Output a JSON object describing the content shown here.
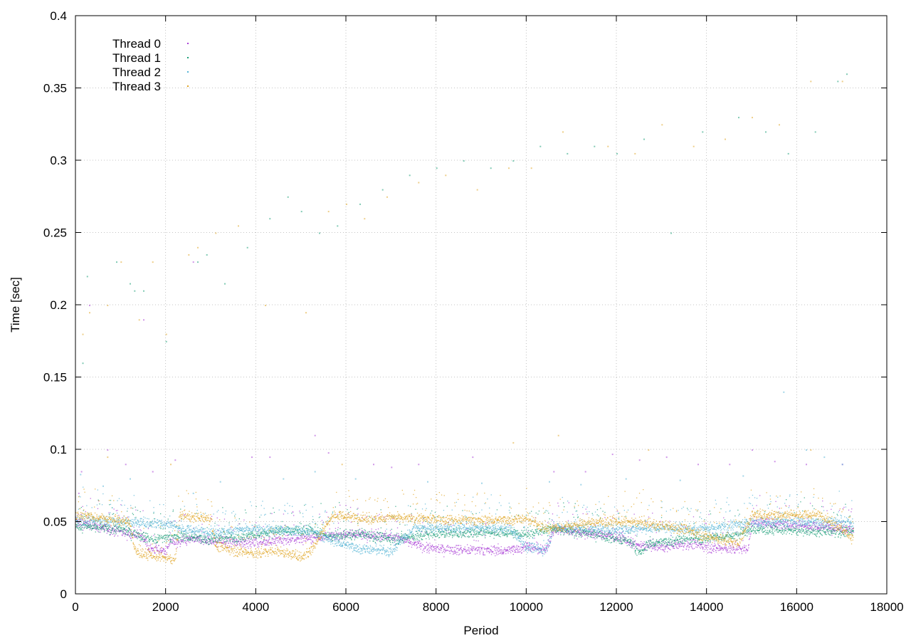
{
  "chart_data": {
    "type": "scatter",
    "title": "",
    "xlabel": "Period",
    "ylabel": "Time [sec]",
    "xlim": [
      0,
      18000
    ],
    "ylim": [
      0,
      0.4
    ],
    "x_ticks": [
      0,
      2000,
      4000,
      6000,
      8000,
      10000,
      12000,
      14000,
      16000,
      18000
    ],
    "y_ticks": [
      0,
      0.05,
      0.1,
      0.15,
      0.2,
      0.25,
      0.3,
      0.35,
      0.4
    ],
    "x_tick_labels": [
      "0",
      "2000",
      "4000",
      "6000",
      "8000",
      "10000",
      "12000",
      "14000",
      "16000",
      "18000"
    ],
    "y_tick_labels": [
      "0",
      "0.05",
      "0.1",
      "0.15",
      "0.2",
      "0.25",
      "0.3",
      "0.35",
      "0.4"
    ],
    "grid": true,
    "legend_position": "top-left",
    "series": [
      {
        "name": "Thread 0",
        "color": "#a93fd6",
        "x_range": [
          0,
          17250
        ],
        "baseline": [
          [
            0,
            0.05
          ],
          [
            1500,
            0.04
          ],
          [
            1600,
            0.032
          ],
          [
            2000,
            0.03
          ],
          [
            2100,
            0.037
          ],
          [
            2200,
            0.035
          ],
          [
            2500,
            0.038
          ],
          [
            3500,
            0.036
          ],
          [
            4000,
            0.036
          ],
          [
            5500,
            0.04
          ],
          [
            6000,
            0.042
          ],
          [
            7000,
            0.04
          ],
          [
            7400,
            0.036
          ],
          [
            7800,
            0.032
          ],
          [
            8500,
            0.031
          ],
          [
            9500,
            0.03
          ],
          [
            10000,
            0.033
          ],
          [
            10400,
            0.03
          ],
          [
            10600,
            0.045
          ],
          [
            12000,
            0.04
          ],
          [
            12400,
            0.034
          ],
          [
            13000,
            0.033
          ],
          [
            13600,
            0.035
          ],
          [
            14200,
            0.032
          ],
          [
            14900,
            0.031
          ],
          [
            15000,
            0.05
          ],
          [
            17250,
            0.045
          ]
        ],
        "outliers": [
          [
            60,
            0.07
          ],
          [
            120,
            0.085
          ],
          [
            300,
            0.2
          ],
          [
            700,
            0.1
          ],
          [
            1100,
            0.09
          ],
          [
            1500,
            0.19
          ],
          [
            1700,
            0.085
          ],
          [
            2200,
            0.093
          ],
          [
            2600,
            0.23
          ],
          [
            3900,
            0.095
          ],
          [
            4300,
            0.095
          ],
          [
            5300,
            0.11
          ],
          [
            5600,
            0.098
          ],
          [
            6600,
            0.09
          ],
          [
            7000,
            0.088
          ],
          [
            7600,
            0.09
          ],
          [
            8800,
            0.095
          ],
          [
            10600,
            0.085
          ],
          [
            11300,
            0.085
          ],
          [
            11900,
            0.097
          ],
          [
            12500,
            0.093
          ],
          [
            13100,
            0.095
          ],
          [
            13800,
            0.09
          ],
          [
            14500,
            0.09
          ],
          [
            15000,
            0.1
          ],
          [
            15500,
            0.092
          ],
          [
            16200,
            0.09
          ],
          [
            17000,
            0.09
          ]
        ]
      },
      {
        "name": "Thread 1",
        "color": "#1a9e77",
        "x_range": [
          0,
          17250
        ],
        "baseline": [
          [
            0,
            0.047
          ],
          [
            1000,
            0.045
          ],
          [
            1700,
            0.038
          ],
          [
            2300,
            0.04
          ],
          [
            3000,
            0.038
          ],
          [
            3800,
            0.04
          ],
          [
            4500,
            0.044
          ],
          [
            5200,
            0.044
          ],
          [
            5600,
            0.04
          ],
          [
            6300,
            0.042
          ],
          [
            7000,
            0.038
          ],
          [
            8000,
            0.042
          ],
          [
            9000,
            0.043
          ],
          [
            10000,
            0.042
          ],
          [
            10500,
            0.045
          ],
          [
            11500,
            0.042
          ],
          [
            12300,
            0.036
          ],
          [
            12500,
            0.028
          ],
          [
            12700,
            0.035
          ],
          [
            13500,
            0.038
          ],
          [
            14500,
            0.04
          ],
          [
            15000,
            0.045
          ],
          [
            17250,
            0.043
          ]
        ],
        "outliers": [
          [
            150,
            0.16
          ],
          [
            250,
            0.22
          ],
          [
            900,
            0.23
          ],
          [
            1200,
            0.215
          ],
          [
            1300,
            0.21
          ],
          [
            1500,
            0.21
          ],
          [
            2000,
            0.175
          ],
          [
            2700,
            0.23
          ],
          [
            2900,
            0.235
          ],
          [
            3300,
            0.215
          ],
          [
            3800,
            0.24
          ],
          [
            4300,
            0.26
          ],
          [
            4700,
            0.275
          ],
          [
            5000,
            0.265
          ],
          [
            5400,
            0.25
          ],
          [
            5800,
            0.255
          ],
          [
            6300,
            0.27
          ],
          [
            6800,
            0.28
          ],
          [
            7400,
            0.29
          ],
          [
            8000,
            0.295
          ],
          [
            8600,
            0.3
          ],
          [
            9200,
            0.295
          ],
          [
            9700,
            0.3
          ],
          [
            10300,
            0.31
          ],
          [
            10900,
            0.305
          ],
          [
            11500,
            0.31
          ],
          [
            12000,
            0.305
          ],
          [
            12600,
            0.315
          ],
          [
            13200,
            0.25
          ],
          [
            13900,
            0.32
          ],
          [
            14700,
            0.33
          ],
          [
            15300,
            0.32
          ],
          [
            15800,
            0.305
          ],
          [
            16400,
            0.32
          ],
          [
            16900,
            0.355
          ],
          [
            17100,
            0.36
          ]
        ]
      },
      {
        "name": "Thread 2",
        "color": "#56b4d6",
        "x_range": [
          0,
          17250
        ],
        "baseline": [
          [
            0,
            0.052
          ],
          [
            1000,
            0.05
          ],
          [
            2000,
            0.049
          ],
          [
            2400,
            0.045
          ],
          [
            3000,
            0.043
          ],
          [
            4000,
            0.045
          ],
          [
            5200,
            0.044
          ],
          [
            5600,
            0.038
          ],
          [
            6000,
            0.034
          ],
          [
            6400,
            0.031
          ],
          [
            7000,
            0.03
          ],
          [
            7500,
            0.046
          ],
          [
            8500,
            0.046
          ],
          [
            9600,
            0.046
          ],
          [
            10000,
            0.033
          ],
          [
            10400,
            0.03
          ],
          [
            10600,
            0.046
          ],
          [
            12000,
            0.045
          ],
          [
            13000,
            0.046
          ],
          [
            14000,
            0.045
          ],
          [
            15000,
            0.05
          ],
          [
            17250,
            0.05
          ]
        ],
        "outliers": [
          [
            100,
            0.083
          ],
          [
            600,
            0.075
          ],
          [
            1200,
            0.08
          ],
          [
            2600,
            0.07
          ],
          [
            3200,
            0.078
          ],
          [
            4600,
            0.08
          ],
          [
            5300,
            0.085
          ],
          [
            6200,
            0.08
          ],
          [
            7800,
            0.078
          ],
          [
            9000,
            0.077
          ],
          [
            10500,
            0.078
          ],
          [
            11200,
            0.076
          ],
          [
            12200,
            0.08
          ],
          [
            13400,
            0.079
          ],
          [
            14800,
            0.082
          ],
          [
            15700,
            0.14
          ],
          [
            16200,
            0.1
          ],
          [
            16600,
            0.095
          ],
          [
            17000,
            0.09
          ]
        ]
      },
      {
        "name": "Thread 3",
        "color": "#e0a526",
        "x_range": [
          0,
          17250
        ],
        "baseline": [
          [
            0,
            0.055
          ],
          [
            1200,
            0.05
          ],
          [
            1300,
            0.03
          ],
          [
            1600,
            0.027
          ],
          [
            2000,
            0.025
          ],
          [
            2200,
            0.024
          ],
          [
            2300,
            0.055
          ],
          [
            3000,
            0.052
          ],
          [
            3100,
            0.033
          ],
          [
            3600,
            0.03
          ],
          [
            4000,
            0.028
          ],
          [
            4400,
            0.03
          ],
          [
            5000,
            0.026
          ],
          [
            5200,
            0.03
          ],
          [
            5700,
            0.055
          ],
          [
            6500,
            0.052
          ],
          [
            7000,
            0.053
          ],
          [
            8000,
            0.052
          ],
          [
            9000,
            0.051
          ],
          [
            10000,
            0.052
          ],
          [
            10500,
            0.045
          ],
          [
            11500,
            0.05
          ],
          [
            12500,
            0.05
          ],
          [
            13500,
            0.045
          ],
          [
            14000,
            0.04
          ],
          [
            14700,
            0.035
          ],
          [
            15000,
            0.055
          ],
          [
            16500,
            0.055
          ],
          [
            17000,
            0.045
          ],
          [
            17250,
            0.038
          ]
        ],
        "outliers": [
          [
            150,
            0.18
          ],
          [
            300,
            0.195
          ],
          [
            700,
            0.2
          ],
          [
            1000,
            0.23
          ],
          [
            1400,
            0.19
          ],
          [
            1700,
            0.23
          ],
          [
            2000,
            0.18
          ],
          [
            2500,
            0.235
          ],
          [
            2700,
            0.24
          ],
          [
            3100,
            0.25
          ],
          [
            3600,
            0.255
          ],
          [
            4200,
            0.2
          ],
          [
            5100,
            0.195
          ],
          [
            5600,
            0.265
          ],
          [
            6000,
            0.27
          ],
          [
            6400,
            0.26
          ],
          [
            6900,
            0.275
          ],
          [
            7600,
            0.285
          ],
          [
            8200,
            0.29
          ],
          [
            8900,
            0.28
          ],
          [
            9600,
            0.295
          ],
          [
            10100,
            0.295
          ],
          [
            10800,
            0.32
          ],
          [
            11800,
            0.31
          ],
          [
            12400,
            0.305
          ],
          [
            13000,
            0.325
          ],
          [
            13700,
            0.31
          ],
          [
            14400,
            0.315
          ],
          [
            15000,
            0.33
          ],
          [
            15600,
            0.325
          ],
          [
            16300,
            0.355
          ],
          [
            17000,
            0.355
          ],
          [
            700,
            0.095
          ],
          [
            2100,
            0.09
          ],
          [
            5900,
            0.09
          ],
          [
            9700,
            0.105
          ],
          [
            10700,
            0.11
          ],
          [
            12700,
            0.1
          ],
          [
            16300,
            0.1
          ]
        ]
      }
    ]
  }
}
